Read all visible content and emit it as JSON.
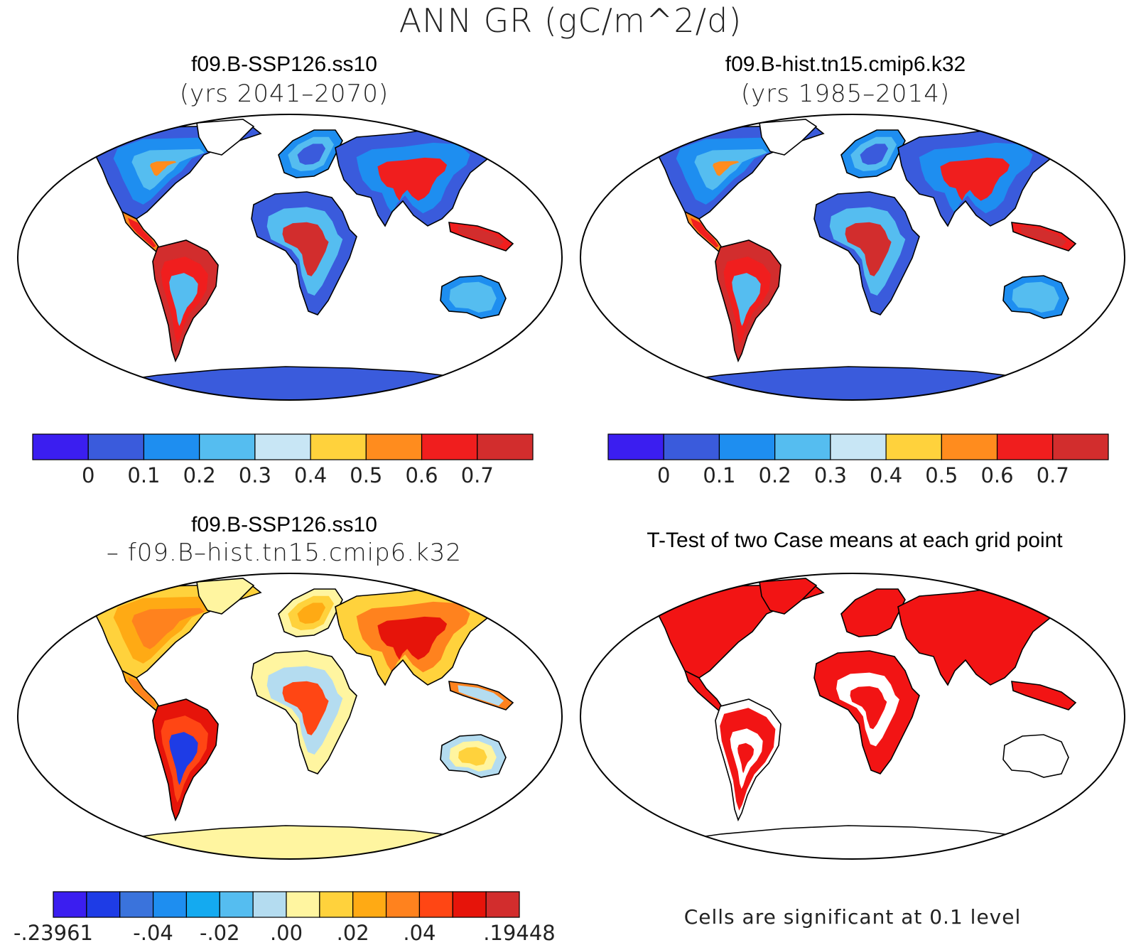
{
  "title": "ANN GR (gC/m^2/d)",
  "panels": [
    {
      "title": "f09.B-SSP126.ss10",
      "subtitle": "(yrs 2041–2070)",
      "colorbar": {
        "colors": [
          "#3b1ef0",
          "#3a5bdc",
          "#1e8ef0",
          "#55bdf0",
          "#c8e6f5",
          "#ffd23c",
          "#ff8c1e",
          "#f01e1e",
          "#d22d2d"
        ],
        "labels": [
          "0",
          "0.1",
          "0.2",
          "0.3",
          "0.4",
          "0.5",
          "0.6",
          "0.7"
        ]
      }
    },
    {
      "title": "f09.B-hist.tn15.cmip6.k32",
      "subtitle": "(yrs 1985–2014)",
      "colorbar": {
        "colors": [
          "#3b1ef0",
          "#3a5bdc",
          "#1e8ef0",
          "#55bdf0",
          "#c8e6f5",
          "#ffd23c",
          "#ff8c1e",
          "#f01e1e",
          "#d22d2d"
        ],
        "labels": [
          "0",
          "0.1",
          "0.2",
          "0.3",
          "0.4",
          "0.5",
          "0.6",
          "0.7"
        ]
      }
    },
    {
      "title": "f09.B-SSP126.ss10",
      "subtitle": "– f09.B–hist.tn15.cmip6.k32",
      "colorbar": {
        "colors": [
          "#3b1ef0",
          "#1e3ce6",
          "#3a73dc",
          "#1e8ef0",
          "#14aaf0",
          "#55bdf0",
          "#b4dcf0",
          "#fff5a0",
          "#ffd23c",
          "#ffaa14",
          "#ff821e",
          "#ff4614",
          "#e6140a",
          "#d22d2d"
        ],
        "labels": [
          "-.23961",
          "-.04",
          "-.02",
          ".00",
          ".02",
          ".04",
          ".19448"
        ]
      }
    },
    {
      "title": "T-Test of two Case means at each grid point",
      "note": "Cells are significant at 0.1 level"
    }
  ]
}
